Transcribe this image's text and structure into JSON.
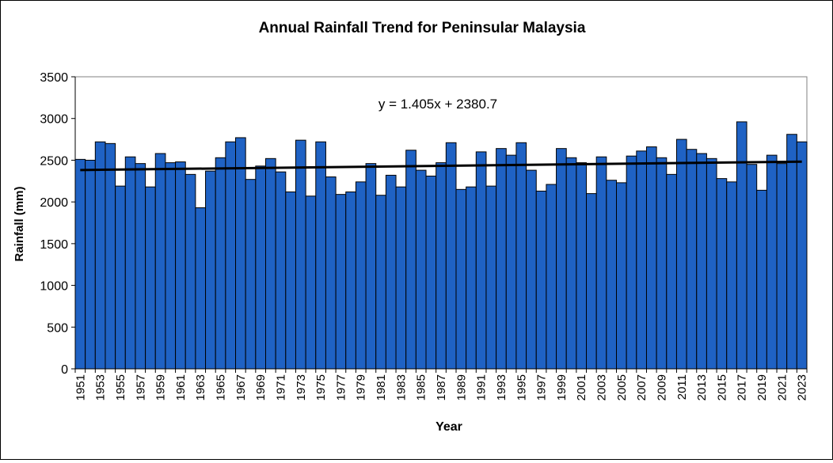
{
  "chart_data": {
    "type": "bar",
    "title": "Annual Rainfall Trend for Peninsular Malaysia",
    "xlabel": "Year",
    "ylabel": "Rainfall (mm)",
    "ylim": [
      0,
      3500
    ],
    "yticks": [
      0,
      500,
      1000,
      1500,
      2000,
      2500,
      3000,
      3500
    ],
    "grid": false,
    "bar_color": "#1F62C4",
    "bar_edge_color": "#000000",
    "trend_color": "#000000",
    "trendline_equation": "y = 1.405x + 2380.7",
    "trendline": {
      "slope": 1.405,
      "intercept": 2380.7
    },
    "categories": [
      1951,
      1952,
      1953,
      1954,
      1955,
      1956,
      1957,
      1958,
      1959,
      1960,
      1961,
      1962,
      1963,
      1964,
      1965,
      1966,
      1967,
      1968,
      1969,
      1970,
      1971,
      1972,
      1973,
      1974,
      1975,
      1976,
      1977,
      1978,
      1979,
      1980,
      1981,
      1982,
      1983,
      1984,
      1985,
      1986,
      1987,
      1988,
      1989,
      1990,
      1991,
      1992,
      1993,
      1994,
      1995,
      1996,
      1997,
      1998,
      1999,
      2000,
      2001,
      2002,
      2003,
      2004,
      2005,
      2006,
      2007,
      2008,
      2009,
      2010,
      2011,
      2012,
      2013,
      2014,
      2015,
      2016,
      2017,
      2018,
      2019,
      2020,
      2021,
      2022,
      2023
    ],
    "values": [
      2510,
      2500,
      2720,
      2700,
      2190,
      2540,
      2460,
      2180,
      2580,
      2470,
      2480,
      2330,
      1930,
      2370,
      2530,
      2720,
      2770,
      2270,
      2430,
      2520,
      2360,
      2120,
      2740,
      2070,
      2720,
      2300,
      2090,
      2120,
      2240,
      2460,
      2080,
      2320,
      2180,
      2620,
      2380,
      2310,
      2470,
      2710,
      2150,
      2180,
      2600,
      2190,
      2640,
      2560,
      2710,
      2380,
      2130,
      2210,
      2640,
      2530,
      2470,
      2100,
      2540,
      2260,
      2230,
      2550,
      2610,
      2660,
      2530,
      2330,
      2750,
      2630,
      2580,
      2520,
      2280,
      2240,
      2960,
      2450,
      2140,
      2560,
      2460,
      2810,
      2720
    ]
  }
}
